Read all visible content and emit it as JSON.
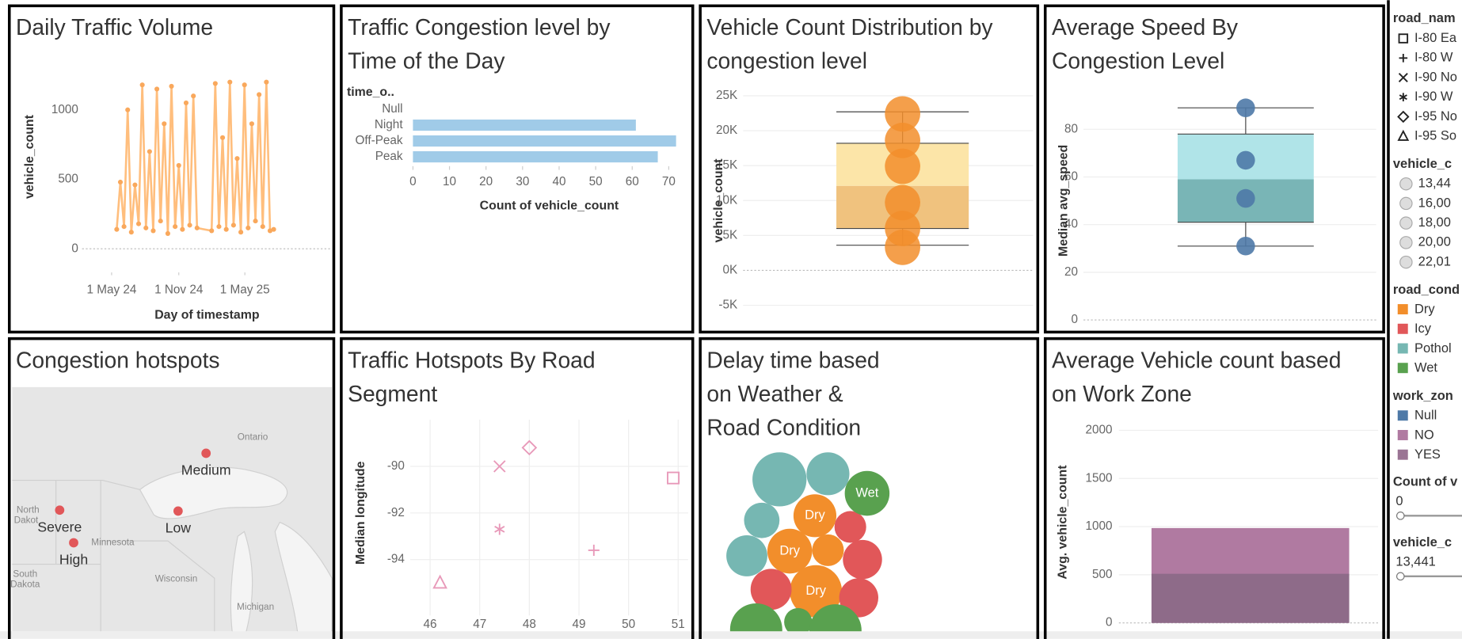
{
  "chart_data": [
    {
      "type": "line",
      "title": [
        "Daily Traffic Volume"
      ],
      "x_label": "Day of timestamp",
      "y_label": "vehicle_count",
      "color": "#ffbe7d",
      "point_color": "#f9a85c",
      "x": [
        "2024-05-15",
        "2024-05-25",
        "2024-06-04",
        "2024-06-14",
        "2024-06-24",
        "2024-07-04",
        "2024-07-14",
        "2024-07-24",
        "2024-08-03",
        "2024-08-13",
        "2024-08-23",
        "2024-09-02",
        "2024-09-12",
        "2024-09-22",
        "2024-10-02",
        "2024-10-12",
        "2024-10-22",
        "2024-11-01",
        "2024-11-11",
        "2024-11-21",
        "2024-12-01",
        "2024-12-11",
        "2024-12-21",
        "2025-01-30",
        "2025-02-09",
        "2025-02-19",
        "2025-03-01",
        "2025-03-11",
        "2025-03-21",
        "2025-03-31",
        "2025-04-10",
        "2025-04-20",
        "2025-04-30",
        "2025-05-10",
        "2025-05-20",
        "2025-05-30",
        "2025-06-09",
        "2025-06-19",
        "2025-06-29",
        "2025-07-09",
        "2025-07-19"
      ],
      "values": [
        140,
        480,
        160,
        1000,
        120,
        460,
        180,
        1180,
        150,
        700,
        130,
        1150,
        200,
        900,
        110,
        1170,
        160,
        600,
        140,
        1050,
        170,
        1100,
        150,
        130,
        1190,
        160,
        800,
        140,
        1200,
        170,
        650,
        120,
        1180,
        150,
        900,
        200,
        1110,
        160,
        1200,
        130,
        140
      ],
      "xlim": [
        "2024-02-10",
        "2025-12-23"
      ],
      "xticks": [
        {
          "value": "2024-05-01",
          "label": "1 May 24"
        },
        {
          "value": "2024-11-01",
          "label": "1 Nov 24"
        },
        {
          "value": "2025-05-01",
          "label": "1 May 25"
        }
      ],
      "ylim": [
        -170,
        1400
      ],
      "yticks": [
        0,
        500,
        1000
      ]
    },
    {
      "type": "hbar",
      "title": [
        "Traffic Congestion level by",
        "Time of the Day"
      ],
      "category_label": "time_o..",
      "x_label": "Count of vehicle_count",
      "color": "#a0cbe8",
      "categories": [
        "Null",
        "Night",
        "Off-Peak",
        "Peak"
      ],
      "values": [
        null,
        61,
        72,
        67
      ],
      "xlim": [
        -1.5,
        73
      ],
      "xticks": [
        0,
        10,
        20,
        30,
        40,
        50,
        60,
        70
      ]
    },
    {
      "type": "box",
      "title": [
        "Vehicle Count Distribution by",
        "congestion level"
      ],
      "y_label": "vehicle_count",
      "point_color": "#f28e2b",
      "box_colors": [
        "#f0c27e",
        "#fce5a8"
      ],
      "values": [
        22400,
        18600,
        14900,
        9700,
        6000,
        3300
      ],
      "box": {
        "whisker_low": 3600,
        "q1": 6000,
        "median": 12100,
        "q3": 18200,
        "whisker_high": 22700
      },
      "ylim": [
        -6700,
        26000
      ],
      "yticks": [
        {
          "value": -5000,
          "label": "-5K"
        },
        {
          "value": 0,
          "label": "0K"
        },
        {
          "value": 5000,
          "label": "5K"
        },
        {
          "value": 10000,
          "label": "10K"
        },
        {
          "value": 15000,
          "label": "15K"
        },
        {
          "value": 20000,
          "label": "20K"
        },
        {
          "value": 25000,
          "label": "25K"
        }
      ]
    },
    {
      "type": "box",
      "title": [
        "Average Speed By",
        "Congestion Level"
      ],
      "y_label": "Median avg_speed",
      "point_color": "#4e79a7",
      "box_colors": [
        "#79b5b6",
        "#b0e4e8"
      ],
      "values": [
        89,
        67,
        51,
        31
      ],
      "box": {
        "whisker_low": 31,
        "q1": 41,
        "median": 59,
        "q3": 78,
        "whisker_high": 89
      },
      "ylim": [
        0,
        97
      ],
      "yticks": [
        0,
        20,
        40,
        60,
        80
      ]
    },
    {
      "type": "map",
      "title": [
        "Congestion hotspots"
      ],
      "color": "#e15759",
      "categories": [
        "Medium",
        "Severe",
        "Low",
        "High"
      ],
      "place_labels": [
        "Ontario",
        "North",
        "Dakot",
        "Minnesota",
        "South",
        "Dakota",
        "Wisconsin",
        "Michigan"
      ]
    },
    {
      "type": "scatter",
      "title": [
        "Traffic Hotspots By Road",
        "Segment"
      ],
      "y_label": "Median longitude",
      "color": "#e899b9",
      "x": [
        50.9,
        49.3,
        47.4,
        47.4,
        48.0,
        46.2
      ],
      "values": [
        -90.5,
        -93.6,
        -90.0,
        -92.7,
        -89.2,
        -95.0
      ],
      "xlim": [
        45.6,
        51.2
      ],
      "xticks": [
        46,
        47,
        48,
        49,
        50,
        51
      ],
      "ylim": [
        -96.4,
        -88.0
      ],
      "yticks": [
        -94,
        -92,
        -90
      ]
    },
    {
      "type": "bubble",
      "title": [
        "Delay time based",
        "on Weather &",
        "Road Condition"
      ],
      "series": [
        {
          "name": "Dry",
          "color": "#f28e2b",
          "values": [
            529,
            576,
            289,
            784
          ],
          "show_label": [
            true,
            true,
            false,
            true
          ]
        },
        {
          "name": "Icy",
          "color": "#e15759",
          "values": [
            289,
            441,
            484,
            441
          ],
          "show_label": [
            false,
            false,
            false,
            false
          ]
        },
        {
          "name": "Pothole",
          "color": "#76b7b2",
          "values": [
            841,
            529,
            361,
            484
          ],
          "show_label": [
            false,
            false,
            false,
            false
          ]
        },
        {
          "name": "Wet",
          "color": "#59a14f",
          "values": [
            576,
            784,
            225,
            784
          ],
          "show_label": [
            true,
            false,
            false,
            false
          ]
        }
      ]
    },
    {
      "type": "bar",
      "title": [
        "Average Vehicle count based",
        "on Work Zone"
      ],
      "y_label": "Avg. vehicle_count",
      "series": [
        {
          "color": "#b07aa1",
          "values": [
            985
          ]
        },
        {
          "color": "#8e6b89",
          "values": [
            510
          ]
        }
      ],
      "ylim": [
        0,
        2100
      ],
      "yticks": [
        0,
        500,
        1000,
        1500,
        2000
      ]
    }
  ],
  "sidebar": {
    "road_name": {
      "title": "road_nam",
      "items": [
        {
          "label": "I-80 Ea",
          "shape": "square"
        },
        {
          "label": "I-80 W",
          "shape": "plus"
        },
        {
          "label": "I-90 No",
          "shape": "cross"
        },
        {
          "label": "I-90 W",
          "shape": "asterisk"
        },
        {
          "label": "I-95 No",
          "shape": "diamond"
        },
        {
          "label": "I-95 So",
          "shape": "triangle"
        }
      ]
    },
    "vehicle_count_size": {
      "title": "vehicle_c",
      "items": [
        "13,44",
        "16,00",
        "18,00",
        "20,00",
        "22,01"
      ]
    },
    "road_condition": {
      "title": "road_cond",
      "items": [
        {
          "label": "Dry",
          "color": "#f28e2b"
        },
        {
          "label": "Icy",
          "color": "#e15759"
        },
        {
          "label": "Pothol",
          "color": "#76b7b2"
        },
        {
          "label": "Wet",
          "color": "#59a14f"
        }
      ]
    },
    "work_zone": {
      "title": "work_zon",
      "items": [
        {
          "label": "Null",
          "color": "#4e79a7"
        },
        {
          "label": "NO",
          "color": "#b07aa1"
        },
        {
          "label": "YES",
          "color": "#9a7494"
        }
      ]
    },
    "filters": [
      {
        "title": "Count of v",
        "value": "0"
      },
      {
        "title": "vehicle_c",
        "value": "13,441"
      }
    ]
  }
}
